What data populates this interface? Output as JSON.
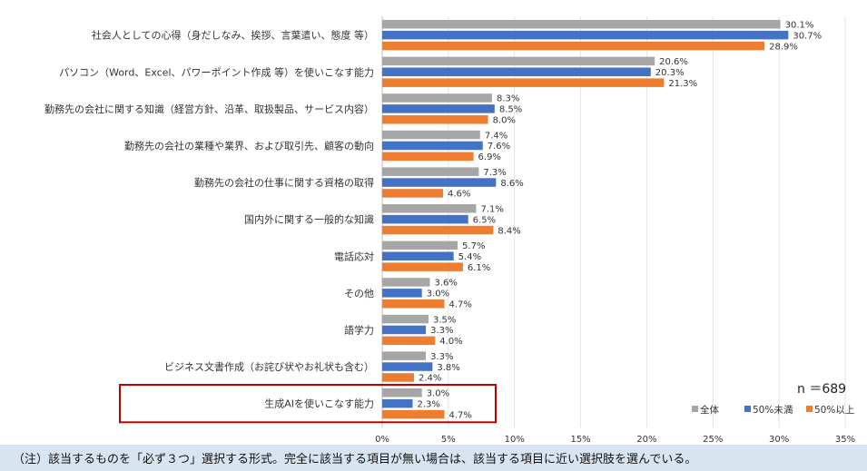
{
  "chart_data": {
    "type": "bar",
    "orientation": "horizontal",
    "categories": [
      "社会人としての心得（身だしなみ、挨拶、言葉遣い、態度 等）",
      "パソコン（Word、Excel、パワーポイント作成 等）を使いこなす能力",
      "勤務先の会社に関する知識（経営方針、沿革、取扱製品、サービス内容）",
      "勤務先の会社の業種や業界、および取引先、顧客の動向",
      "勤務先の会社の仕事に関する資格の取得",
      "国内外に関する一般的な知識",
      "電話応対",
      "その他",
      "語学力",
      "ビジネス文書作成（お詫び状やお礼状も含む）",
      "生成AIを使いこなす能力"
    ],
    "series": [
      {
        "name": "全体",
        "color": "#a6a6a6",
        "values": [
          30.1,
          20.6,
          8.3,
          7.4,
          7.3,
          7.1,
          5.7,
          3.6,
          3.5,
          3.3,
          3.0
        ],
        "labels": [
          "30.1%",
          "20.6%",
          "8.3%",
          "7.4%",
          "7.3%",
          "7.1%",
          "5.7%",
          "3.6%",
          "3.5%",
          "3.3%",
          "3.0%"
        ]
      },
      {
        "name": "50%未満",
        "color": "#4472c4",
        "values": [
          30.7,
          20.3,
          8.5,
          7.6,
          8.6,
          6.5,
          5.4,
          3.0,
          3.3,
          3.8,
          2.3
        ],
        "labels": [
          "30.7%",
          "20.3%",
          "8.5%",
          "7.6%",
          "8.6%",
          "6.5%",
          "5.4%",
          "3.0%",
          "3.3%",
          "3.8%",
          "2.3%"
        ]
      },
      {
        "name": "50%以上",
        "color": "#ed7d31",
        "values": [
          28.9,
          21.3,
          8.0,
          6.9,
          4.6,
          8.4,
          6.1,
          4.7,
          4.0,
          2.4,
          4.7
        ],
        "labels": [
          "28.9%",
          "21.3%",
          "8.0%",
          "6.9%",
          "4.6%",
          "8.4%",
          "6.1%",
          "4.7%",
          "4.0%",
          "2.4%",
          "4.7%"
        ]
      }
    ],
    "xlim": [
      0,
      35
    ],
    "xticks": [
      0,
      5,
      10,
      15,
      20,
      25,
      30,
      35
    ],
    "xtick_labels": [
      "0%",
      "5%",
      "10%",
      "15%",
      "20%",
      "25%",
      "30%",
      "35%"
    ],
    "highlighted_category": "生成AIを使いこなす能力",
    "highlight_color": "#c00000",
    "legend_position": "bottom-right",
    "grid": "vertical",
    "sample_size_label": "n ＝689"
  },
  "footnote": "（注）該当するものを「必ず３つ」選択する形式。完全に該当する項目が無い場合は、該当する項目に近い選択肢を選んでいる。"
}
